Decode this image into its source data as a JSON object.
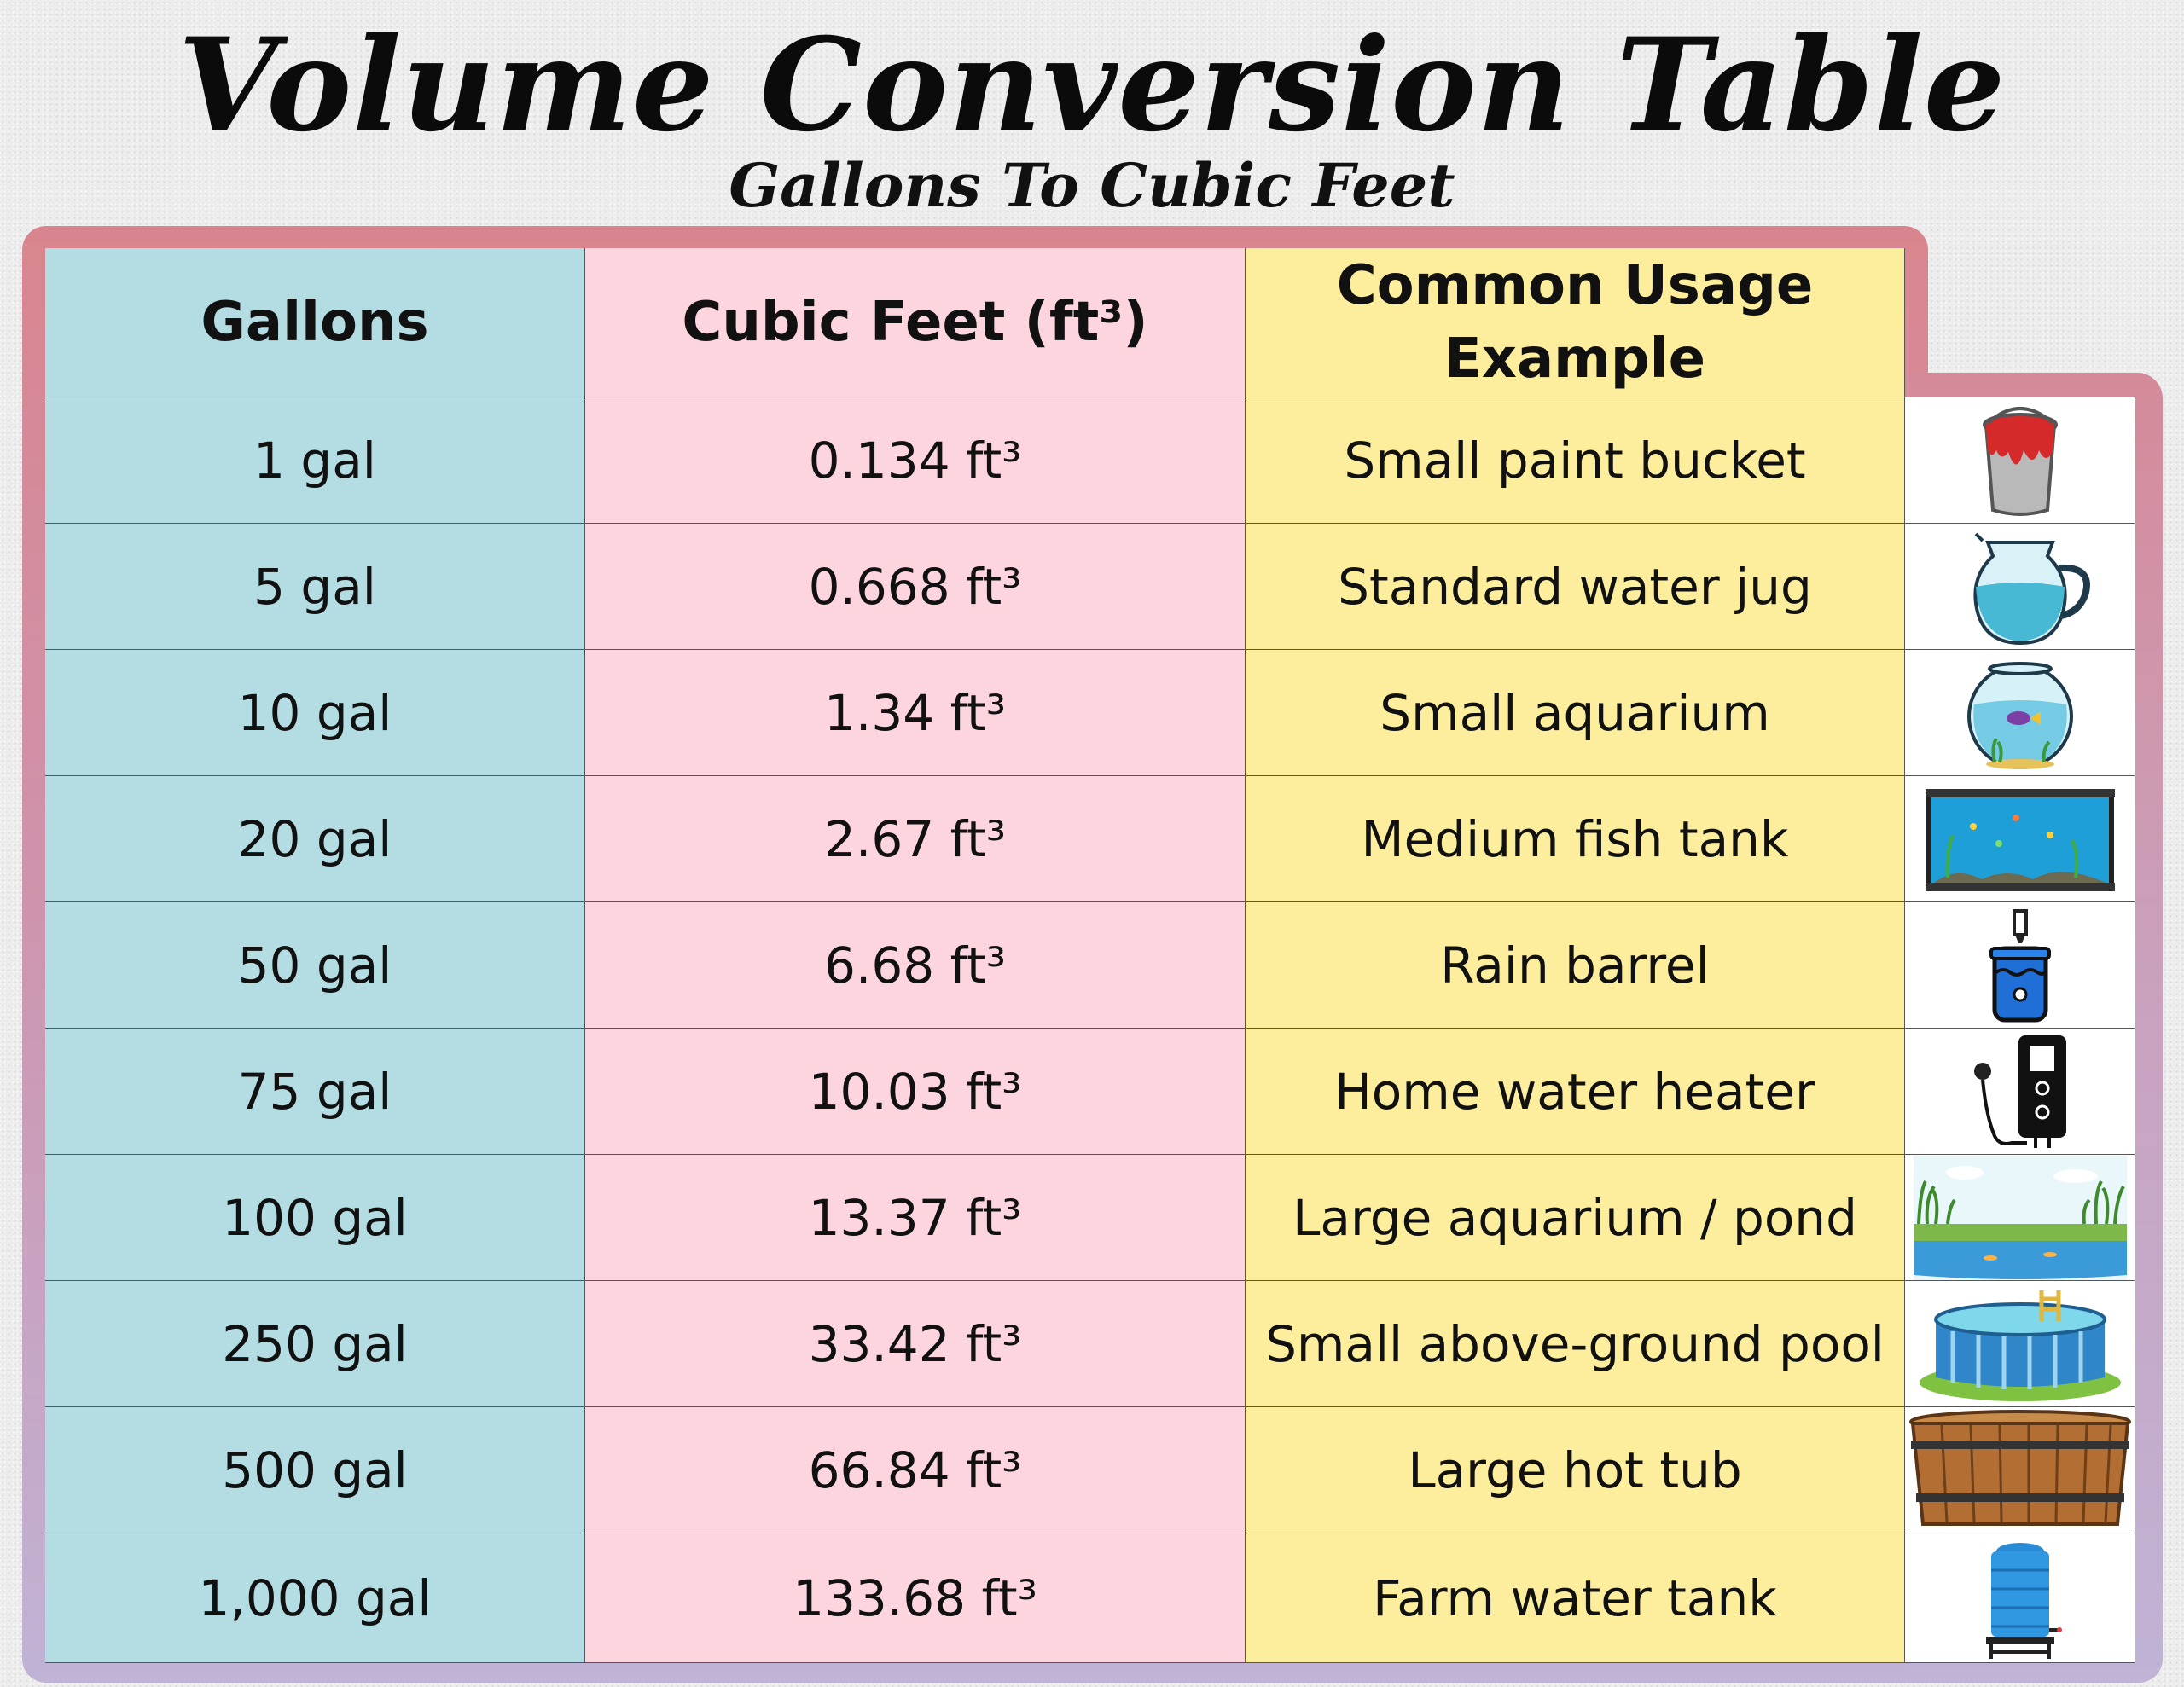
{
  "title": "Volume Conversion Table",
  "subtitle": "Gallons To Cubic Feet",
  "colors": {
    "gallons_column": "#b3dde2",
    "cubic_feet_column": "#fdd5df",
    "usage_column": "#fdee9e",
    "frame_top": "#d9858f",
    "frame_bottom": "#c0b3d6"
  },
  "table": {
    "headers": [
      "Gallons",
      "Cubic Feet (ft³)",
      "Common Usage Example"
    ],
    "rows": [
      {
        "gallons": "1 gal",
        "cubic_feet": "0.134 ft³",
        "usage": "Small paint bucket",
        "icon": "paint-bucket-icon"
      },
      {
        "gallons": "5 gal",
        "cubic_feet": "0.668 ft³",
        "usage": "Standard water jug",
        "icon": "water-jug-icon"
      },
      {
        "gallons": "10 gal",
        "cubic_feet": "1.34 ft³",
        "usage": "Small aquarium",
        "icon": "fishbowl-icon"
      },
      {
        "gallons": "20 gal",
        "cubic_feet": "2.67 ft³",
        "usage": "Medium fish tank",
        "icon": "fish-tank-icon"
      },
      {
        "gallons": "50 gal",
        "cubic_feet": "6.68 ft³",
        "usage": "Rain barrel",
        "icon": "rain-barrel-icon"
      },
      {
        "gallons": "75 gal",
        "cubic_feet": "10.03 ft³",
        "usage": "Home water heater",
        "icon": "water-heater-icon"
      },
      {
        "gallons": "100 gal",
        "cubic_feet": "13.37 ft³",
        "usage": "Large aquarium / pond",
        "icon": "pond-icon"
      },
      {
        "gallons": "250 gal",
        "cubic_feet": "33.42 ft³",
        "usage": "Small above-ground pool",
        "icon": "above-ground-pool-icon"
      },
      {
        "gallons": "500 gal",
        "cubic_feet": "66.84 ft³",
        "usage": "Large hot tub",
        "icon": "hot-tub-icon"
      },
      {
        "gallons": "1,000 gal",
        "cubic_feet": "133.68 ft³",
        "usage": "Farm water tank",
        "icon": "water-tank-icon"
      }
    ]
  }
}
